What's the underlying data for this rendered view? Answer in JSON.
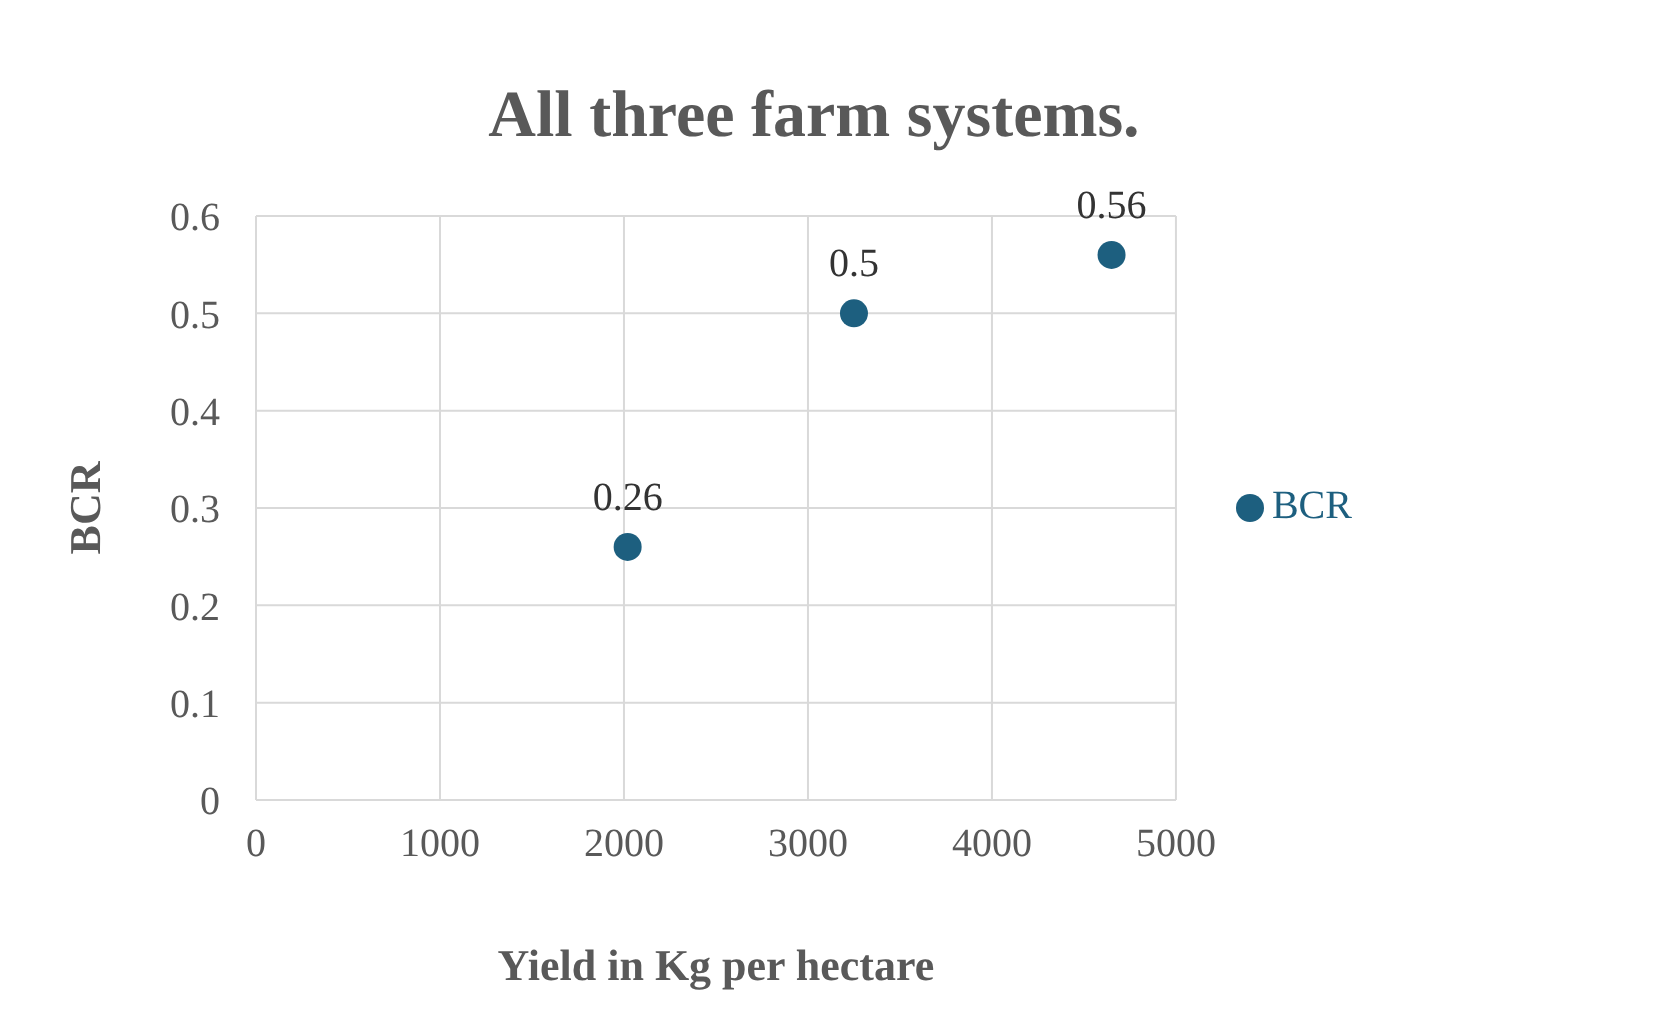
{
  "chart_data": {
    "type": "scatter",
    "title": "All three farm systems.",
    "xlabel": "Yield in Kg per hectare",
    "ylabel": "BCR",
    "x": [
      2020,
      3250,
      4650
    ],
    "series": [
      {
        "name": "BCR",
        "color": "#1d5f7f",
        "values": [
          0.26,
          0.5,
          0.56
        ]
      }
    ],
    "xlim": [
      0,
      5000
    ],
    "xticks": [
      0,
      1000,
      2000,
      3000,
      4000,
      5000
    ],
    "ylim": [
      0,
      0.6
    ],
    "yticks": [
      0,
      0.1,
      0.2,
      0.3,
      0.4,
      0.5,
      0.6
    ],
    "grid": true,
    "legend": "right",
    "marker": "circle",
    "data_labels": true
  }
}
